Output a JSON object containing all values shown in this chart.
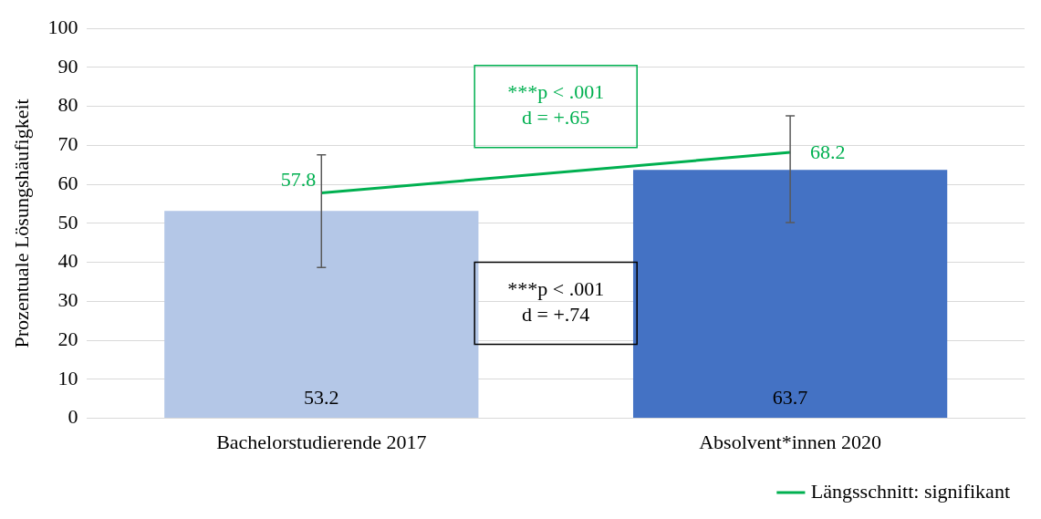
{
  "chart_data": {
    "type": "bar",
    "ylabel": "Prozentuale Lösungshäufigkeit",
    "categories": [
      "Bachelorstudierende 2017",
      "Absolvent*innen 2020"
    ],
    "series": [
      {
        "colors": [
          "#b4c7e7",
          "#4472c4"
        ],
        "values": [
          53.2,
          63.7
        ]
      },
      {
        "type": "line",
        "name": "Längsschnitt: signifikant",
        "color": "#00b050",
        "values": [
          57.8,
          68.2
        ],
        "errors": [
          [
            38.7,
            67.6
          ],
          [
            50.2,
            77.6
          ]
        ]
      }
    ],
    "ylim": [
      0,
      100
    ],
    "yticks": [
      0,
      10,
      20,
      30,
      40,
      50,
      60,
      70,
      80,
      90,
      100
    ],
    "grid": "y",
    "legend": "bottom right",
    "marker": "none",
    "data_labels": true,
    "annotations": [
      "***p < .001\nd = +.65",
      "***p < .001\nd = +.74"
    ]
  }
}
